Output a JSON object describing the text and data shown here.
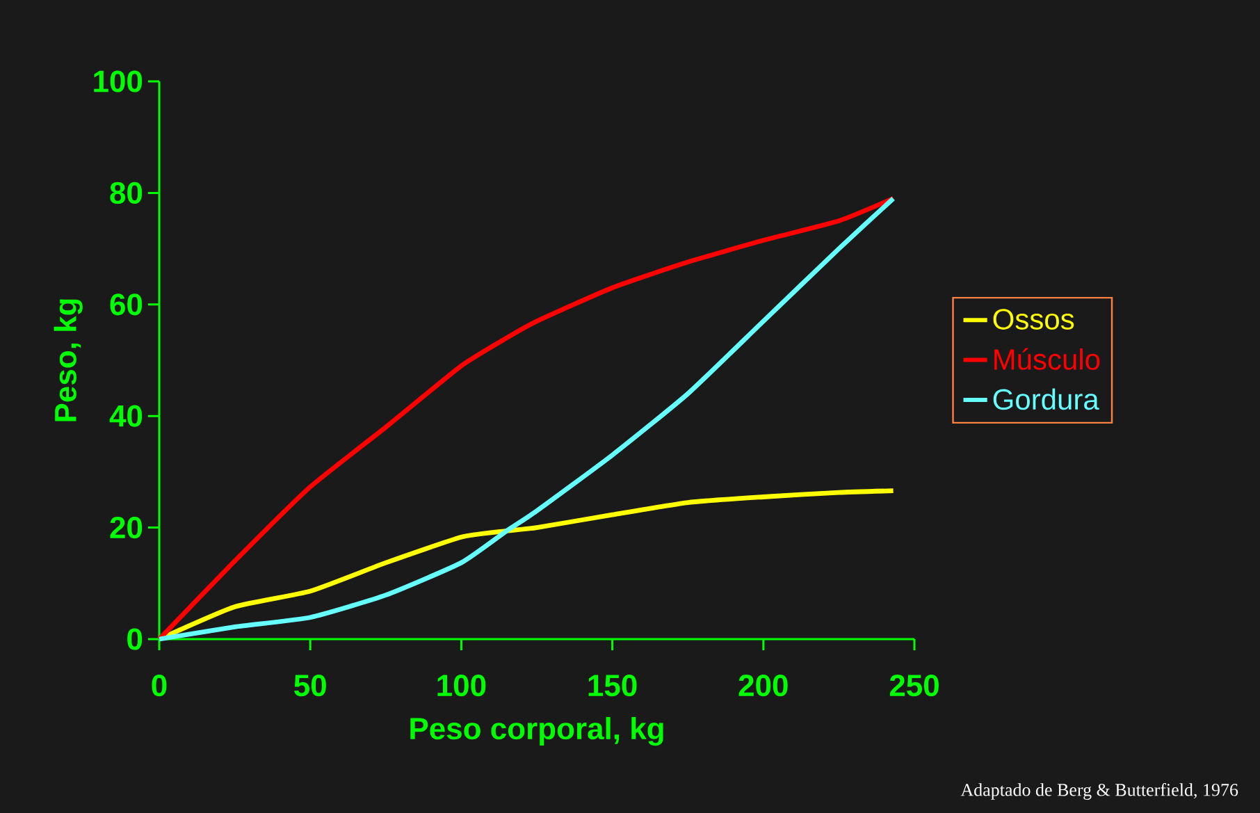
{
  "chart_data": {
    "type": "line",
    "xlabel": "Peso corporal, kg",
    "ylabel": "Peso, kg",
    "x": [
      0,
      25,
      50,
      75,
      100,
      115,
      125,
      150,
      175,
      200,
      225,
      243
    ],
    "series": [
      {
        "name": "Ossos",
        "color": "#ffff00",
        "values": [
          0,
          5.8,
          8.6,
          13.7,
          18.3,
          19.4,
          20,
          22.3,
          24.5,
          25.5,
          26.3,
          26.6
        ]
      },
      {
        "name": "Músculo",
        "color": "#ff0000",
        "values": [
          0,
          14,
          27.3,
          38,
          49,
          54,
          57,
          63,
          67.6,
          71.5,
          75,
          79
        ]
      },
      {
        "name": "Gordura",
        "color": "#66ffff",
        "values": [
          0,
          2.2,
          3.9,
          7.9,
          13.7,
          19.4,
          23,
          33,
          44,
          57,
          70,
          79
        ]
      }
    ],
    "xlim": [
      0,
      250
    ],
    "ylim": [
      0,
      100
    ],
    "xticks": [
      0,
      50,
      100,
      150,
      200,
      250
    ],
    "yticks": [
      0,
      20,
      40,
      60,
      80,
      100
    ],
    "grid": false,
    "legend": "right",
    "marker": "none",
    "line_style": "solid",
    "annotations": [
      "Adaptado de Berg & Butterfield, 1976"
    ]
  }
}
